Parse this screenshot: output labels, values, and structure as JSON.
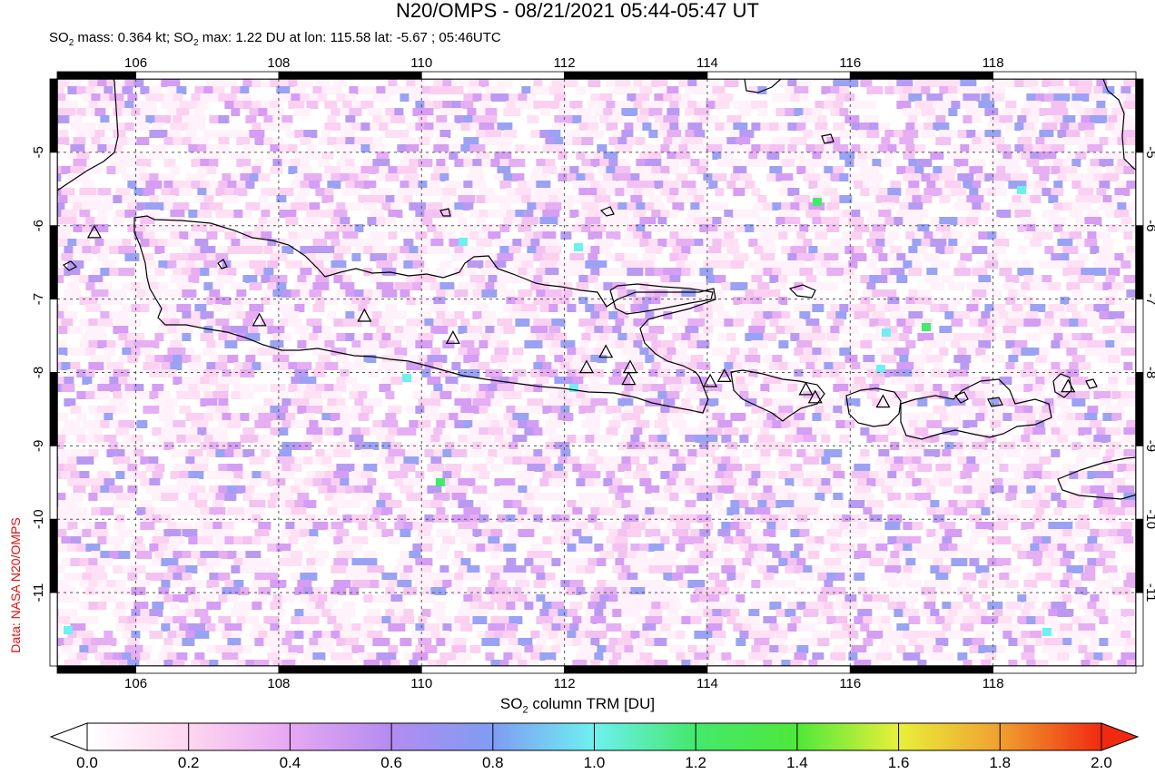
{
  "header": {
    "title": "N20/OMPS - 08/21/2021 05:44-05:47 UT",
    "subtitle_parts": [
      "SO",
      "2",
      " mass: 0.364 kt; SO",
      "2",
      " max: 1.22 DU at lon: 115.58 lat: -5.67 ; 05:46UTC"
    ]
  },
  "credit": "Data: NASA N20/OMPS",
  "map": {
    "lon_range": [
      104.9,
      120.0
    ],
    "lat_range": [
      -12.0,
      -4.0
    ],
    "lon_ticks": [
      "106",
      "108",
      "110",
      "112",
      "114",
      "116",
      "118"
    ],
    "lat_ticks": [
      "-5",
      "-6",
      "-7",
      "-8",
      "-9",
      "-10",
      "-11"
    ],
    "lat_tick_values": [
      -5,
      -6,
      -7,
      -8,
      -9,
      -10,
      -11
    ],
    "lon_tick_values": [
      106,
      108,
      110,
      112,
      114,
      116,
      118
    ],
    "grid": true,
    "volcanoes": [
      {
        "lon": 105.42,
        "lat": -6.1
      },
      {
        "lon": 107.73,
        "lat": -7.3
      },
      {
        "lon": 109.2,
        "lat": -7.24
      },
      {
        "lon": 110.44,
        "lat": -7.54
      },
      {
        "lon": 112.31,
        "lat": -7.94
      },
      {
        "lon": 112.58,
        "lat": -7.73
      },
      {
        "lon": 112.92,
        "lat": -7.94
      },
      {
        "lon": 112.9,
        "lat": -8.1
      },
      {
        "lon": 114.04,
        "lat": -8.13
      },
      {
        "lon": 114.24,
        "lat": -8.06
      },
      {
        "lon": 115.38,
        "lat": -8.24
      },
      {
        "lon": 115.51,
        "lat": -8.35
      },
      {
        "lon": 116.46,
        "lat": -8.41
      },
      {
        "lon": 119.05,
        "lat": -8.2
      }
    ]
  },
  "colorbar": {
    "title_parts": [
      "SO",
      "2",
      " column TRM [DU]"
    ],
    "ticks": [
      "0.0",
      "0.2",
      "0.4",
      "0.6",
      "0.8",
      "1.0",
      "1.2",
      "1.4",
      "1.6",
      "1.8",
      "2.0"
    ],
    "range": [
      0.0,
      2.0
    ],
    "colors": [
      "#ffffff",
      "#ffd6f0",
      "#e6a8f2",
      "#b38cf0",
      "#7f9cf3",
      "#6ef0f0",
      "#44e86c",
      "#4ee83a",
      "#e8f03a",
      "#f0a030",
      "#f02a10"
    ]
  },
  "chart_data": {
    "type": "heatmap",
    "title": "N20/OMPS - 08/21/2021 05:44-05:47 UT",
    "colorbar_label": "SO2 column TRM [DU]",
    "value_range": [
      0.0,
      2.0
    ],
    "so2_mass_kt": 0.364,
    "so2_max_du": 1.22,
    "max_location": {
      "lon": 115.58,
      "lat": -5.67
    },
    "max_time_utc": "05:46UTC"
  }
}
